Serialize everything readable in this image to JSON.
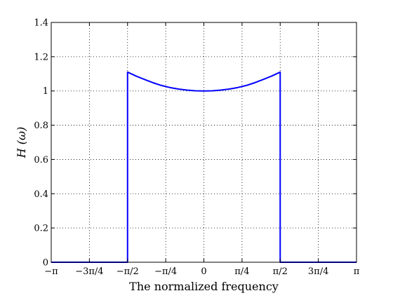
{
  "chart_data": {
    "type": "line",
    "title": "",
    "xlabel": "The normalized frequency",
    "ylabel": "H (ω)",
    "xlim": [
      -3.14159,
      3.14159
    ],
    "ylim": [
      0,
      1.4
    ],
    "grid": true,
    "x_ticks": [
      {
        "value": -3.14159,
        "label": "−π"
      },
      {
        "value": -2.35619,
        "label": "−3π/4"
      },
      {
        "value": -1.5708,
        "label": "−π/2"
      },
      {
        "value": -0.7854,
        "label": "−π/4"
      },
      {
        "value": 0,
        "label": "0"
      },
      {
        "value": 0.7854,
        "label": "π/4"
      },
      {
        "value": 1.5708,
        "label": "π/2"
      },
      {
        "value": 2.35619,
        "label": "3π/4"
      },
      {
        "value": 3.14159,
        "label": "π"
      }
    ],
    "y_ticks": [
      {
        "value": 0,
        "label": "0"
      },
      {
        "value": 0.2,
        "label": "0.2"
      },
      {
        "value": 0.4,
        "label": "0.4"
      },
      {
        "value": 0.6,
        "label": "0.6"
      },
      {
        "value": 0.8,
        "label": "0.8"
      },
      {
        "value": 1.0,
        "label": "1"
      },
      {
        "value": 1.2,
        "label": "1.2"
      },
      {
        "value": 1.4,
        "label": "1.4"
      }
    ],
    "series": [
      {
        "color": "#0000ff",
        "x": [
          -3.14159,
          -1.5708,
          -1.5708,
          -1.3963,
          -1.2217,
          -1.0472,
          -0.8727,
          -0.6981,
          -0.5236,
          -0.3491,
          -0.1745,
          0,
          0.1745,
          0.3491,
          0.5236,
          0.6981,
          0.8727,
          1.0472,
          1.2217,
          1.3963,
          1.5708,
          1.5708,
          1.5708,
          3.14159
        ],
        "y": [
          0,
          0,
          1.11,
          1.087,
          1.067,
          1.048,
          1.032,
          1.02,
          1.011,
          1.005,
          1.001,
          1.0,
          1.001,
          1.005,
          1.011,
          1.02,
          1.032,
          1.048,
          1.067,
          1.087,
          1.11,
          0.55,
          0,
          0
        ]
      }
    ]
  }
}
